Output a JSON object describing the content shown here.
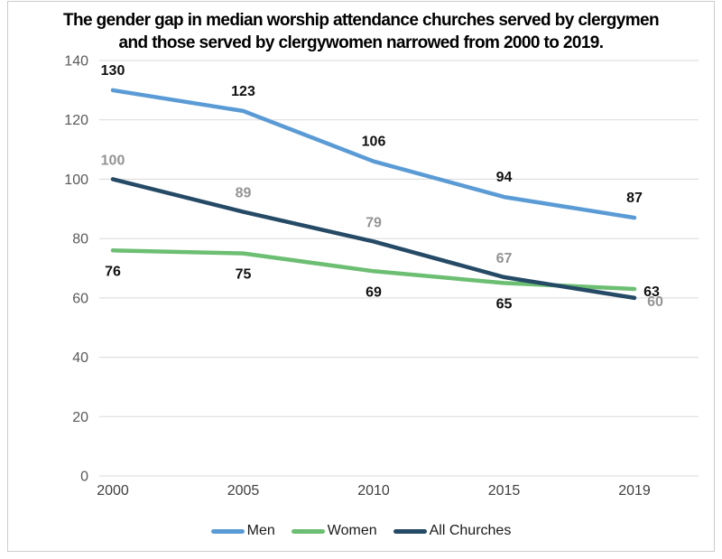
{
  "title": {
    "line1": "The gender gap in median worship attendance churches served by clergymen",
    "line2": "and those served by clergywomen narrowed from 2000 to 2019."
  },
  "chart_data": {
    "type": "line",
    "title": "The gender gap in median worship attendance churches served by clergymen and those served by clergywomen narrowed from 2000 to 2019.",
    "x_categories": [
      "2000",
      "2005",
      "2010",
      "2015",
      "2019"
    ],
    "series": [
      {
        "name": "Men",
        "color": "#5B9BD5",
        "label_color": "#111111",
        "values": [
          130,
          123,
          106,
          94,
          87
        ]
      },
      {
        "name": "Women",
        "color": "#6CBE72",
        "label_color": "#111111",
        "values": [
          76,
          75,
          69,
          65,
          63
        ]
      },
      {
        "name": "All Churches",
        "color": "#254A66",
        "label_color": "#949494",
        "values": [
          100,
          89,
          79,
          67,
          60
        ]
      }
    ],
    "ylim": [
      0,
      140
    ],
    "ytick_step": 20,
    "ytick_labels": [
      "0",
      "20",
      "40",
      "60",
      "80",
      "100",
      "120",
      "140"
    ],
    "grid": true,
    "data_labels": true,
    "legend_position": "bottom"
  },
  "colors": {
    "grid_line": "#D9D9D9",
    "y_tick_text": "#595959",
    "x_tick_text": "#3F3F3F",
    "frame_border": "#CCCCCC",
    "background": "#FFFFFF"
  }
}
